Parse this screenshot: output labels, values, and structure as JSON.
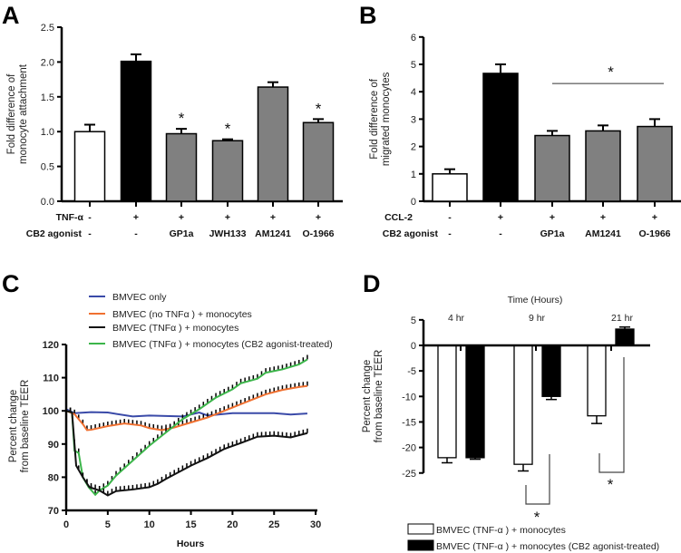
{
  "chart_data": [
    {
      "panel": "A",
      "type": "bar",
      "ylabel": [
        "Fold difference of",
        "monocyte attachment"
      ],
      "ylim": [
        0,
        2.5
      ],
      "yticks": [
        "0.0",
        "0.5",
        "1.0",
        "1.5",
        "2.0",
        "2.5"
      ],
      "row_labels": [
        "TNF-α",
        "CB2 agonist"
      ],
      "treatment_row": [
        "-",
        "+",
        "+",
        "+",
        "+",
        "+"
      ],
      "agonist_row": [
        "-",
        "-",
        "GP1a",
        "JWH133",
        "AM1241",
        "O-1966"
      ],
      "values": [
        1.0,
        2.01,
        0.97,
        0.87,
        1.64,
        1.13
      ],
      "errors": [
        0.1,
        0.1,
        0.07,
        0.02,
        0.07,
        0.05
      ],
      "fills": [
        "#ffffff",
        "#000000",
        "#808080",
        "#808080",
        "#808080",
        "#808080"
      ],
      "significant": [
        false,
        false,
        true,
        true,
        false,
        true
      ],
      "star": "*"
    },
    {
      "panel": "B",
      "type": "bar",
      "ylabel": [
        "Fold difference of",
        "migrated monocytes"
      ],
      "ylim": [
        0,
        6
      ],
      "yticks": [
        "0",
        "1",
        "2",
        "3",
        "4",
        "5",
        "6"
      ],
      "row_labels": [
        "CCL-2",
        "CB2 agonist"
      ],
      "treatment_row": [
        "-",
        "+",
        "+",
        "+",
        "+"
      ],
      "agonist_row": [
        "-",
        "-",
        "GP1a",
        "AM1241",
        "O-1966"
      ],
      "values": [
        1.0,
        4.67,
        2.4,
        2.57,
        2.73
      ],
      "errors": [
        0.17,
        0.33,
        0.17,
        0.2,
        0.27
      ],
      "fills": [
        "#ffffff",
        "#000000",
        "#808080",
        "#808080",
        "#808080"
      ],
      "significance_bar": {
        "from": 2,
        "to": 4,
        "level": 4.3
      },
      "star": "*"
    },
    {
      "panel": "C",
      "type": "line",
      "xlabel": "Hours",
      "ylabel": [
        "Percent change",
        "from baseline TEER"
      ],
      "xlim": [
        0,
        30
      ],
      "ylim": [
        70,
        120
      ],
      "xticks": [
        "0",
        "5",
        "10",
        "15",
        "20",
        "25",
        "30"
      ],
      "yticks": [
        "70",
        "80",
        "90",
        "100",
        "110",
        "120"
      ],
      "legend": "top",
      "series": [
        {
          "name": "BMVEC only",
          "color": "#3a4aa8",
          "errorbars": false,
          "x": [
            0,
            1,
            3,
            5,
            8,
            10,
            14,
            16,
            17,
            20,
            25,
            27,
            29
          ],
          "y": [
            100.5,
            99.3,
            99.6,
            99.5,
            98.3,
            98.6,
            98.3,
            99.5,
            98.6,
            99.3,
            99.3,
            98.9,
            99.2
          ]
        },
        {
          "name": "BMVEC (no TNFα ) + monocytes",
          "color": "#f07030",
          "errorbars": true,
          "x": [
            0,
            1,
            2,
            2.5,
            3,
            5,
            7,
            9,
            10,
            11.5,
            13,
            15,
            17,
            19,
            21,
            22,
            24,
            26,
            28,
            29
          ],
          "y": [
            100,
            99,
            96,
            94.2,
            94.3,
            95.4,
            96.2,
            95.6,
            94.8,
            94.2,
            95,
            96.5,
            98,
            100,
            102,
            103,
            105,
            106.3,
            107.2,
            107.5
          ]
        },
        {
          "name": "BMVEC (TNFα ) + monocytes",
          "color": "#111111",
          "errorbars": true,
          "x": [
            0,
            0.7,
            1,
            1.2,
            2,
            2.8,
            4,
            5,
            6,
            8,
            10,
            11,
            12,
            15,
            17,
            19,
            21,
            23,
            25,
            27,
            29
          ],
          "y": [
            100,
            99.5,
            90,
            83.5,
            80,
            77,
            76,
            74.5,
            75.8,
            76.3,
            77,
            78,
            79.5,
            83.5,
            85.8,
            88.5,
            90.3,
            92.2,
            92.5,
            92,
            93.3
          ]
        },
        {
          "name": "BMVEC (TNFα ) + monocytes (CB2 agonist-treated)",
          "color": "#3cb54a",
          "errorbars": true,
          "x": [
            0,
            0.7,
            1,
            1.5,
            2,
            2.7,
            3.5,
            4,
            5,
            6,
            8,
            10,
            12,
            14,
            16,
            18,
            20,
            21,
            23,
            24,
            26,
            28,
            29
          ],
          "y": [
            100,
            99.5,
            88,
            87.3,
            80,
            77,
            74.7,
            76,
            77.5,
            80.5,
            85,
            89.5,
            93.5,
            97.5,
            100.5,
            104,
            106.5,
            108.3,
            109.7,
            111.5,
            112.5,
            114,
            115.5
          ]
        }
      ]
    },
    {
      "panel": "D",
      "type": "bar",
      "title": "Time (Hours)",
      "ylabel": [
        "Percent change",
        "from baseline TEER"
      ],
      "ylim": [
        -25,
        5
      ],
      "yticks": [
        "-25",
        "-20",
        "-15",
        "-10",
        "-5",
        "0",
        "5"
      ],
      "categories": [
        "4 hr",
        "9 hr",
        "21 hr"
      ],
      "series": [
        {
          "name": "BMVEC (TNF-α ) + monocytes",
          "color": "#ffffff",
          "values": [
            -22,
            -23.3,
            -13.8
          ],
          "errors": [
            1.0,
            1.3,
            1.5
          ]
        },
        {
          "name": "BMVEC (TNF-α ) + monocytes (CB2 agonist-treated)",
          "color": "#000000",
          "values": [
            -22,
            -10,
            3.2
          ],
          "errors": [
            0.3,
            0.6,
            0.4
          ]
        }
      ],
      "significant": [
        false,
        true,
        true
      ],
      "star": "*",
      "legend": "bottom"
    }
  ]
}
